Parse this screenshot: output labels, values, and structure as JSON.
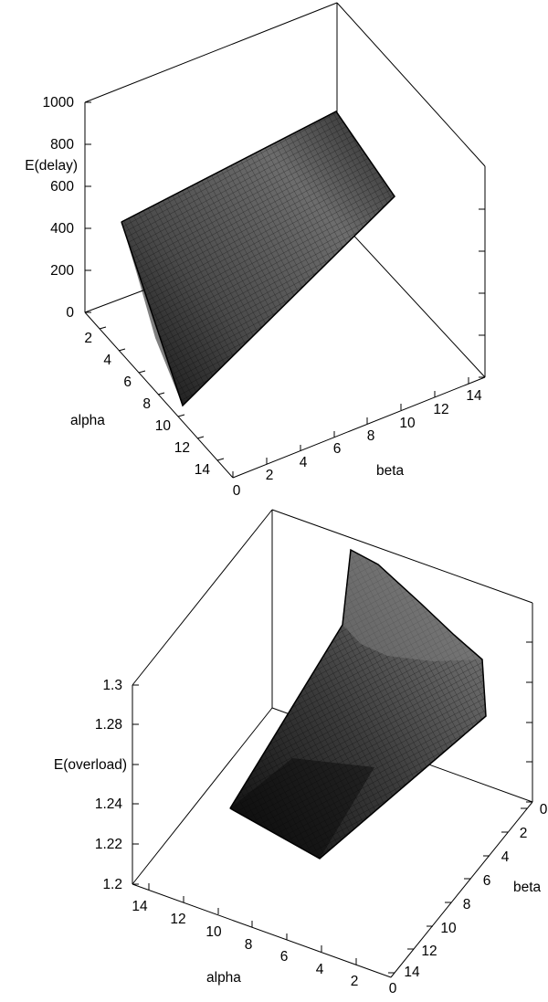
{
  "chart_data": [
    {
      "type": "surface",
      "zlabel": "E(delay)",
      "xlabel": "alpha",
      "ylabel": "beta",
      "zlim": [
        0,
        1000
      ],
      "xlim": [
        0,
        15
      ],
      "ylim": [
        0,
        15
      ],
      "zticks": [
        "0",
        "200",
        "400",
        "600",
        "800",
        "1000"
      ],
      "xticks": [
        "2",
        "4",
        "6",
        "8",
        "10",
        "12",
        "14"
      ],
      "yticks": [
        "0",
        "2",
        "4",
        "6",
        "8",
        "10",
        "12",
        "14"
      ],
      "grid": false,
      "shading": "grayscale",
      "surface_corners": [
        {
          "alpha": 1,
          "beta": 1,
          "value": 630
        },
        {
          "alpha": 1,
          "beta": 15,
          "value": 990
        },
        {
          "alpha": 15,
          "beta": 1,
          "value": 10
        },
        {
          "alpha": 15,
          "beta": 15,
          "value": 620
        }
      ]
    },
    {
      "type": "surface",
      "zlabel": "E(overload)",
      "xlabel": "alpha",
      "ylabel": "beta",
      "zlim": [
        1.2,
        1.3
      ],
      "xlim": [
        0,
        15
      ],
      "ylim": [
        0,
        15
      ],
      "zticks": [
        "1.2",
        "1.22",
        "1.24",
        "",
        "1.28",
        "1.3"
      ],
      "xticks": [
        "14",
        "12",
        "10",
        "8",
        "6",
        "4",
        "2"
      ],
      "yticks": [
        "0",
        "2",
        "4",
        "6",
        "8",
        "10",
        "12",
        "14"
      ],
      "x_end_label": "0",
      "grid": false,
      "shading": "grayscale",
      "surface_corners": [
        {
          "alpha": 1,
          "beta": 1,
          "value": 1.2
        },
        {
          "alpha": 15,
          "beta": 1,
          "value": 1.2
        },
        {
          "alpha": 1,
          "beta": 15,
          "value": 1.255
        },
        {
          "alpha": 15,
          "beta": 15,
          "value": 1.305
        }
      ]
    }
  ]
}
